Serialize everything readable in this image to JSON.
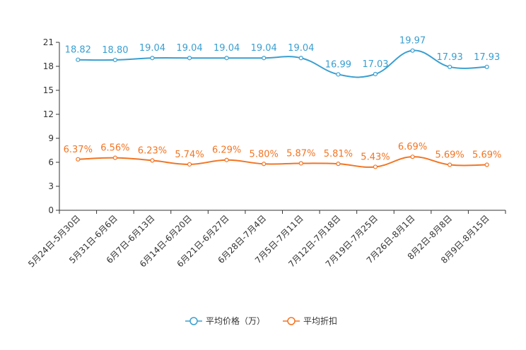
{
  "chart_data": {
    "type": "line",
    "title": "",
    "xlabel": "",
    "ylabel": "",
    "ylim": [
      0,
      21
    ],
    "yticks": [
      0,
      3,
      6,
      9,
      12,
      15,
      18,
      21
    ],
    "categories": [
      "5月24日-5月30日",
      "5月31日-6月6日",
      "6月7日-6月13日",
      "6月14日-6月20日",
      "6月21日-6月27日",
      "6月28日-7月4日",
      "7月5日-7月11日",
      "7月12日-7月18日",
      "7月19日-7月25日",
      "7月26日-8月1日",
      "8月2日-8月8日",
      "8月9日-8月15日"
    ],
    "series": [
      {
        "name": "平均价格（万）",
        "color": "#3a9fd0",
        "values": [
          18.82,
          18.8,
          19.04,
          19.04,
          19.04,
          19.04,
          19.04,
          16.99,
          17.03,
          19.97,
          17.93,
          17.93
        ],
        "labels": [
          "18.82",
          "18.80",
          "19.04",
          "19.04",
          "19.04",
          "19.04",
          "19.04",
          "16.99",
          "17.03",
          "19.97",
          "17.93",
          "17.93"
        ]
      },
      {
        "name": "平均折扣",
        "color": "#f27523",
        "values": [
          6.37,
          6.56,
          6.23,
          5.74,
          6.29,
          5.8,
          5.87,
          5.81,
          5.43,
          6.69,
          5.69,
          5.69
        ],
        "labels": [
          "6.37%",
          "6.56%",
          "6.23%",
          "5.74%",
          "6.29%",
          "5.80%",
          "5.87%",
          "5.81%",
          "5.43%",
          "6.69%",
          "5.69%",
          "5.69%"
        ]
      }
    ],
    "legend": "bottom-center",
    "grid": false
  }
}
